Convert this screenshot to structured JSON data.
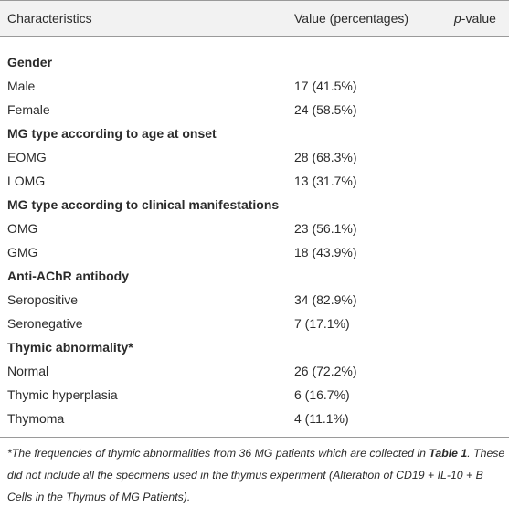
{
  "table": {
    "header": {
      "characteristics": "Characteristics",
      "value": "Value (percentages)",
      "pvalue": {
        "italic": "p",
        "text": "-value"
      }
    },
    "groups": [
      {
        "title": "Gender",
        "rows": [
          [
            "Male",
            "17 (41.5%)"
          ],
          [
            "Female",
            "24 (58.5%)"
          ]
        ]
      },
      {
        "title": "MG type according to age at onset",
        "rows": [
          [
            "EOMG",
            "28 (68.3%)"
          ],
          [
            "LOMG",
            "13 (31.7%)"
          ]
        ]
      },
      {
        "title": "MG type according to clinical manifestations",
        "rows": [
          [
            "OMG",
            "23 (56.1%)"
          ],
          [
            "GMG",
            "18 (43.9%)"
          ]
        ]
      },
      {
        "title": "Anti-AChR antibody",
        "rows": [
          [
            "Seropositive",
            "34 (82.9%)"
          ],
          [
            "Seronegative",
            "7 (17.1%)"
          ]
        ]
      },
      {
        "title": "Thymic abnormality*",
        "rows": [
          [
            "Normal",
            "26 (72.2%)"
          ],
          [
            "Thymic hyperplasia",
            "6 (16.7%)"
          ],
          [
            "Thymoma",
            "4 (11.1%)"
          ]
        ]
      }
    ]
  },
  "footnote": {
    "pre": "*The frequencies of thymic abnormalities from 36 MG patients which are collected in ",
    "ref": "Table 1",
    "post": ". These did not include all the specimens used in the thymus experiment (Alteration of CD19 + IL-10 + B Cells in the Thymus of MG Patients)."
  }
}
